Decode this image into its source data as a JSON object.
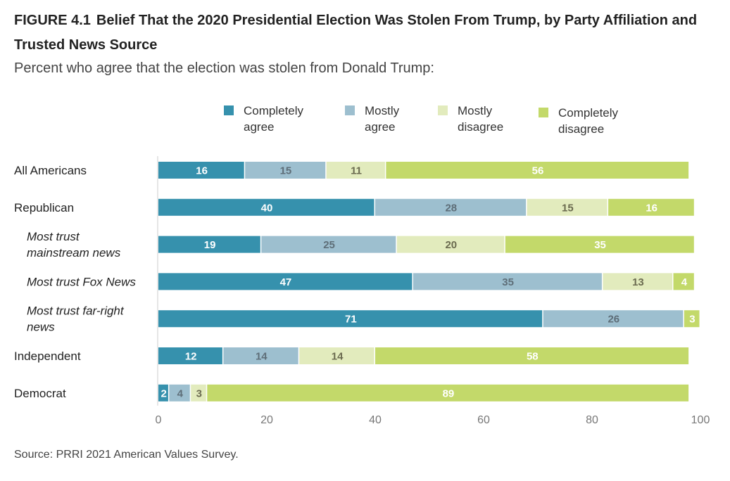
{
  "header": {
    "figure_number": "FIGURE 4.1",
    "title": "Belief That the 2020 Presidential Election Was Stolen From Trump, by Party Affiliation and Trusted News Source",
    "subtitle": "Percent who agree that the election was stolen from Donald Trump:"
  },
  "source": "Source: PRRI 2021 American Values Survey.",
  "chart_data": {
    "type": "bar",
    "orientation": "horizontal",
    "stacked": true,
    "categories": [
      "All Americans",
      "Republican",
      "Most trust mainstream news",
      "Most trust Fox News",
      "Most trust far-right news",
      "Independent",
      "Democrat"
    ],
    "subgroup_categories": [
      false,
      false,
      true,
      true,
      true,
      false,
      false
    ],
    "series": [
      {
        "name": "Completely agree",
        "color": "#3691ad",
        "label_color": "#ffffff",
        "values": [
          16,
          40,
          19,
          47,
          71,
          12,
          2
        ]
      },
      {
        "name": "Mostly agree",
        "color": "#9dbfcf",
        "label_color": "#5e6e78",
        "values": [
          15,
          28,
          25,
          35,
          26,
          14,
          4
        ]
      },
      {
        "name": "Mostly disagree",
        "color": "#e2ebbd",
        "label_color": "#6b6b50",
        "values": [
          11,
          15,
          20,
          13,
          0,
          14,
          3
        ]
      },
      {
        "name": "Completely disagree",
        "color": "#c3d96a",
        "label_color": "#ffffff",
        "values": [
          56,
          16,
          35,
          4,
          3,
          58,
          89
        ]
      }
    ],
    "xlim": [
      0,
      100
    ],
    "xticks": [
      0,
      20,
      40,
      60,
      80,
      100
    ],
    "legend_position": "top",
    "grid": false
  }
}
